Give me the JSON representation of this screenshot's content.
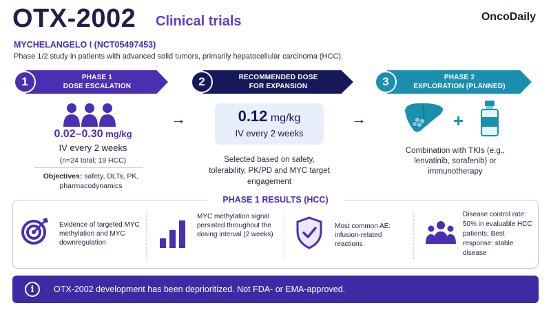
{
  "header": {
    "title": "OTX-2002",
    "subtitle": "Clinical trials",
    "brand": "OncoDaily",
    "trial_name": "MYCHELANGELO I (NCT05497453)",
    "trial_description": "Phase 1/2 study in patients with advanced solid tumors, primarily hepatocellular carcinoma (HCC)."
  },
  "steps": [
    {
      "number": "1",
      "line1": "PHASE 1",
      "line2": "DOSE ESCALATION",
      "color": "#4b2fb3"
    },
    {
      "number": "2",
      "line1": "RECOMMENDED DOSE",
      "line2": "FOR EXPANSION",
      "color": "#15195a"
    },
    {
      "number": "3",
      "line1": "PHASE 2",
      "line2": "EXPLORATION (PLANNED)",
      "color": "#1b8fae"
    }
  ],
  "phase1": {
    "icon": "people-group-icon",
    "dose_value": "0.02–0.30",
    "dose_unit": " mg/kg",
    "schedule": "IV every 2 weeks",
    "enrollment": "(n=24 total; 19 HCC)",
    "objectives_label": "Objectives:",
    "objectives_text": " safety, DLTs, PK, pharmacodynamics"
  },
  "arrow_glyph": "→",
  "recommended": {
    "dose_value": "0.12",
    "dose_unit": " mg/kg",
    "schedule": "IV every 2 weeks",
    "rationale": "Selected based on safety, tolerability, PK/PD and MYC target engagement"
  },
  "phase2": {
    "icons": [
      "liver-icon",
      "plus-icon",
      "vial-icon"
    ],
    "plus_glyph": "+",
    "combination": "Combination with TKIs (e.g., lenvatinib, sorafenib) or immunotherapy"
  },
  "results": {
    "title": "PHASE 1 RESULTS (HCC)",
    "items": [
      {
        "icon": "target-icon",
        "text": "Evidence of targeted MYC methylation and MYC downregulation"
      },
      {
        "icon": "bar-chart-icon",
        "text": "MYC methylation signal persisted throughout the dosing interval (2 weeks)"
      },
      {
        "icon": "shield-check-icon",
        "text": "Most common AE: infusion-related reactions"
      },
      {
        "icon": "patients-icon",
        "text": "Disease control rate: 50% in evaluable HCC patients; Best response: stable disease"
      }
    ]
  },
  "footer": {
    "icon": "info-icon",
    "info_glyph": "i",
    "text": "OTX-2002 development has been deprioritized. Not FDA- or EMA-approved."
  },
  "colors": {
    "primary_purple": "#4b2fb3",
    "navy": "#15195a",
    "teal": "#1b8fae",
    "footer_bg": "#3d2ba5"
  }
}
